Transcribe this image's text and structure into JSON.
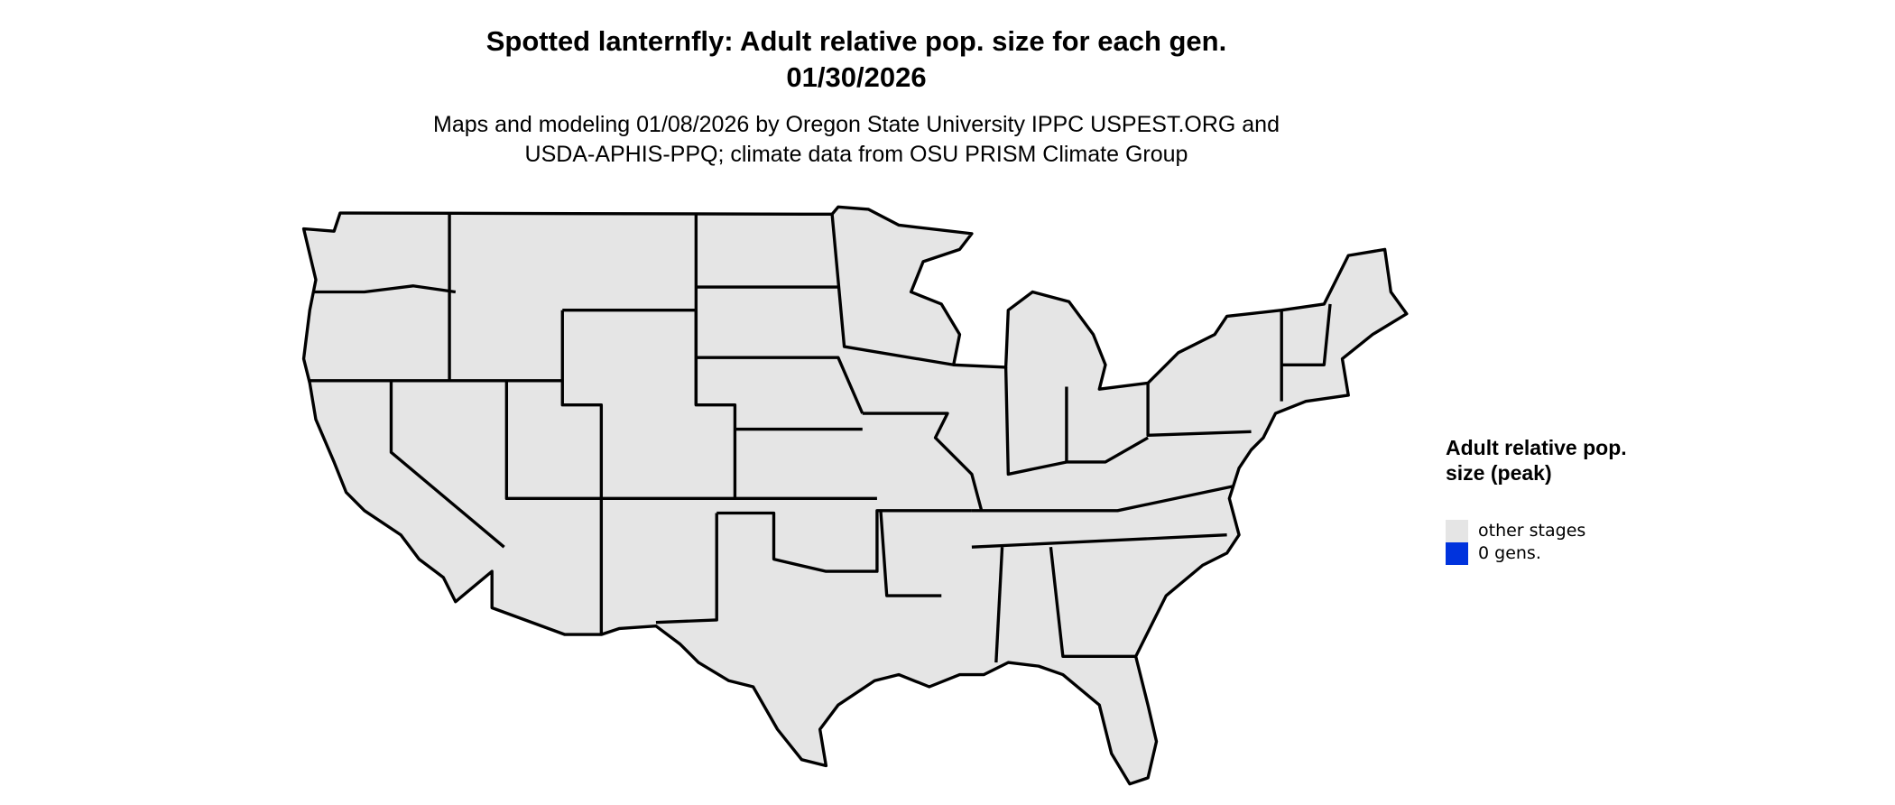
{
  "title_line1": "Spotted lanternfly: Adult relative pop. size for each gen.",
  "title_line2": "01/30/2026",
  "subtitle_line1": "Maps and modeling 01/08/2026 by Oregon State University IPPC USPEST.ORG and",
  "subtitle_line2": "USDA-APHIS-PPQ; climate data from OSU PRISM Climate Group",
  "map": {
    "region": "Contiguous United States",
    "fill_color": "#e5e5e5",
    "border_color": "#000000"
  },
  "legend": {
    "title": "Adult relative pop. size (peak)",
    "items": [
      {
        "label": "other stages",
        "color": "#e5e5e5"
      },
      {
        "label": "0 gens.",
        "color": "#0033dd"
      }
    ]
  }
}
